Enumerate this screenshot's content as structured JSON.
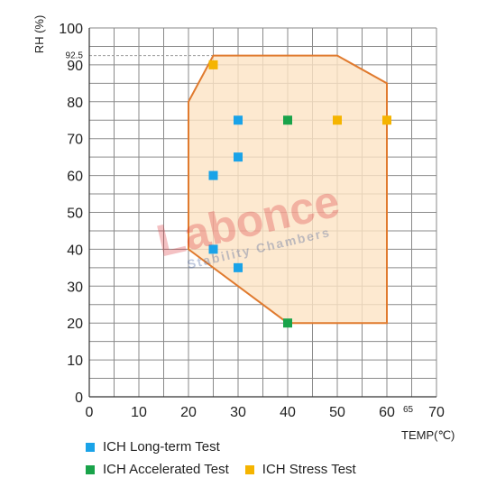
{
  "chart_data": {
    "type": "scatter",
    "xlabel": "TEMP(℃)",
    "ylabel": "RH (%)",
    "xlim": [
      0,
      70
    ],
    "ylim": [
      0,
      100
    ],
    "x_ticks": [
      "0",
      "10",
      "20",
      "30",
      "40",
      "50",
      "60",
      "70"
    ],
    "y_ticks": [
      "0",
      "10",
      "20",
      "30",
      "40",
      "50",
      "60",
      "70",
      "80",
      "90",
      "100"
    ],
    "extra_x_tick": "65",
    "extra_y_tick": "92.5",
    "grid": true,
    "region": {
      "fill": "#fde3c4",
      "stroke": "#e07a2e",
      "points": [
        [
          25,
          92.5
        ],
        [
          50,
          92.5
        ],
        [
          60,
          85
        ],
        [
          60,
          20
        ],
        [
          40,
          20
        ],
        [
          20,
          40
        ],
        [
          20,
          80
        ]
      ]
    },
    "series": [
      {
        "name": "ICH Long-term Test",
        "color": "#1aa3e8",
        "points": [
          [
            25,
            40
          ],
          [
            25,
            60
          ],
          [
            30,
            35
          ],
          [
            30,
            65
          ],
          [
            30,
            75
          ]
        ]
      },
      {
        "name": "ICH Accelerated Test",
        "color": "#19a34a",
        "points": [
          [
            40,
            20
          ],
          [
            40,
            75
          ]
        ]
      },
      {
        "name": "ICH Stress Test",
        "color": "#f5b400",
        "points": [
          [
            25,
            90
          ],
          [
            50,
            75
          ],
          [
            60,
            75
          ]
        ]
      }
    ],
    "watermark": {
      "brand": "Labonce",
      "tagline": "Stability Chambers"
    }
  }
}
